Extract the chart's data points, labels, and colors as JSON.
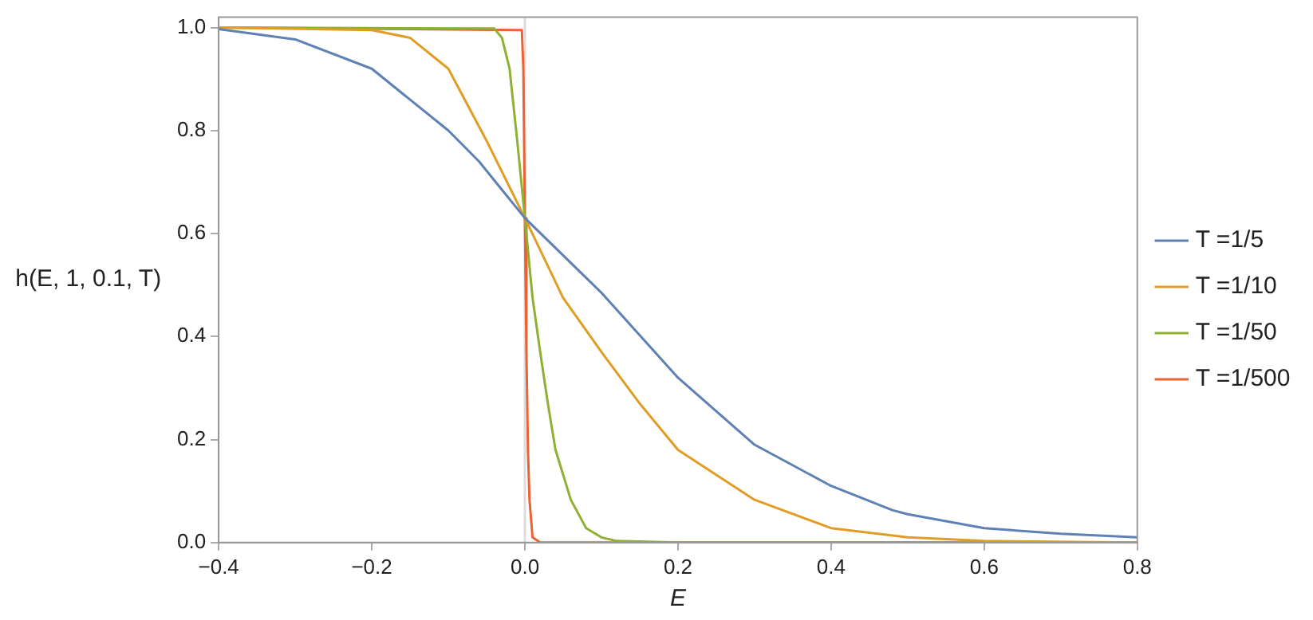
{
  "chart_data": {
    "type": "line",
    "xlabel": "E",
    "ylabel": "h(E, 1, 0.1, T)",
    "xlim": [
      -0.4,
      0.8
    ],
    "ylim": [
      0,
      1.02
    ],
    "xticks": [
      {
        "value": -0.4,
        "label": "−0.4"
      },
      {
        "value": -0.2,
        "label": "−0.2"
      },
      {
        "value": 0,
        "label": "0.0"
      },
      {
        "value": 0.2,
        "label": "0.2"
      },
      {
        "value": 0.4,
        "label": "0.4"
      },
      {
        "value": 0.6,
        "label": "0.6"
      },
      {
        "value": 0.8,
        "label": "0.8"
      }
    ],
    "yticks": [
      {
        "value": 0,
        "label": "0.0"
      },
      {
        "value": 0.2,
        "label": "0.2"
      },
      {
        "value": 0.4,
        "label": "0.4"
      },
      {
        "value": 0.6,
        "label": "0.6"
      },
      {
        "value": 0.8,
        "label": "0.8"
      },
      {
        "value": 1,
        "label": "1.0"
      }
    ],
    "grid": false,
    "legend": "right",
    "marker": "none",
    "line_style": "solid",
    "ref_lines": [
      {
        "axis": "x",
        "value": 0,
        "label": null,
        "color": "#dddddd"
      }
    ],
    "series": [
      {
        "name": "T =1/5",
        "color": "#5e81b5",
        "x": [
          -0.4,
          -0.3,
          -0.2,
          -0.1,
          -0.06,
          0,
          0.1,
          0.2,
          0.3,
          0.4,
          0.48,
          0.5,
          0.6,
          0.7,
          0.8
        ],
        "values": [
          0.997,
          0.977,
          0.92,
          0.8,
          0.74,
          0.63,
          0.485,
          0.32,
          0.19,
          0.11,
          0.063,
          0.055,
          0.028,
          0.017,
          0.01
        ]
      },
      {
        "name": "T =1/10",
        "color": "#e19c24",
        "x": [
          -0.4,
          -0.2,
          -0.15,
          -0.1,
          -0.05,
          0,
          0.05,
          0.1,
          0.15,
          0.2,
          0.3,
          0.4,
          0.5,
          0.6,
          0.8
        ],
        "values": [
          1,
          0.995,
          0.98,
          0.92,
          0.78,
          0.63,
          0.475,
          0.37,
          0.27,
          0.18,
          0.083,
          0.028,
          0.01,
          0.003,
          0
        ]
      },
      {
        "name": "T =1/50",
        "color": "#8fb032",
        "x": [
          -0.4,
          -0.04,
          -0.03,
          -0.02,
          -0.01,
          0,
          0.01,
          0.02,
          0.03,
          0.04,
          0.06,
          0.08,
          0.1,
          0.12,
          0.2,
          0.8
        ],
        "values": [
          1,
          0.998,
          0.98,
          0.92,
          0.78,
          0.63,
          0.475,
          0.37,
          0.27,
          0.18,
          0.083,
          0.028,
          0.01,
          0.003,
          0,
          0
        ]
      },
      {
        "name": "T =1/500",
        "color": "#eb6235",
        "x": [
          -0.4,
          -0.004,
          -0.002,
          0,
          0.002,
          0.004,
          0.006,
          0.01,
          0.02,
          0.8
        ],
        "values": [
          1,
          0.995,
          0.92,
          0.63,
          0.37,
          0.18,
          0.083,
          0.01,
          0,
          0
        ]
      }
    ]
  }
}
